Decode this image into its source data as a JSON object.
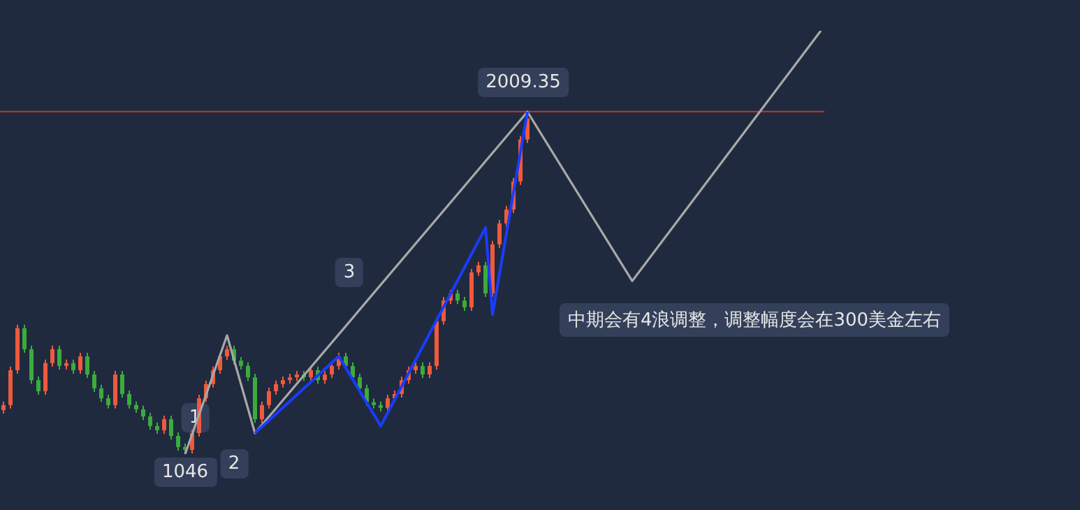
{
  "chart_data": {
    "type": "candlestick",
    "categories": [
      null,
      null,
      null,
      null,
      null,
      null,
      null,
      null,
      null,
      null,
      null,
      null,
      null,
      null,
      null,
      null,
      null,
      null,
      null,
      null,
      null,
      null,
      null,
      null,
      null,
      null,
      null,
      null,
      null,
      null,
      null,
      null,
      null,
      null,
      null,
      null,
      null,
      null,
      null,
      null,
      null,
      null,
      null,
      null,
      null,
      null,
      null,
      null,
      null,
      null,
      null,
      null,
      null,
      null,
      null,
      null,
      null,
      null,
      null,
      null,
      null,
      null,
      null,
      null,
      null,
      null,
      null,
      null,
      null,
      null,
      null,
      null,
      null,
      null,
      null,
      null,
      null,
      null,
      null,
      null,
      null,
      null,
      null,
      null,
      null,
      null,
      null,
      null,
      null,
      null,
      null,
      null,
      null,
      null,
      null,
      null,
      null,
      null,
      null,
      null,
      null,
      null,
      null,
      null,
      null,
      null,
      null,
      null,
      null,
      null,
      null,
      null,
      null,
      null,
      null,
      null,
      null,
      null
    ],
    "ohlc": [
      [
        1170,
        1194,
        1160,
        1184
      ],
      [
        1184,
        1292,
        1174,
        1282
      ],
      [
        1282,
        1410,
        1272,
        1400
      ],
      [
        1400,
        1410,
        1331,
        1341
      ],
      [
        1341,
        1351,
        1244,
        1254
      ],
      [
        1254,
        1264,
        1213,
        1223
      ],
      [
        1223,
        1312,
        1213,
        1302
      ],
      [
        1302,
        1351,
        1292,
        1341
      ],
      [
        1341,
        1351,
        1284,
        1294
      ],
      [
        1294,
        1312,
        1284,
        1302
      ],
      [
        1302,
        1312,
        1272,
        1282
      ],
      [
        1282,
        1331,
        1272,
        1321
      ],
      [
        1321,
        1331,
        1260,
        1270
      ],
      [
        1270,
        1280,
        1221,
        1231
      ],
      [
        1231,
        1241,
        1193,
        1203
      ],
      [
        1203,
        1213,
        1174,
        1184
      ],
      [
        1184,
        1280,
        1174,
        1270
      ],
      [
        1270,
        1280,
        1205,
        1215
      ],
      [
        1215,
        1225,
        1174,
        1184
      ],
      [
        1184,
        1194,
        1162,
        1172
      ],
      [
        1172,
        1182,
        1142,
        1152
      ],
      [
        1152,
        1162,
        1115,
        1125
      ],
      [
        1125,
        1135,
        1103,
        1113
      ],
      [
        1113,
        1154,
        1103,
        1144
      ],
      [
        1144,
        1154,
        1087,
        1097
      ],
      [
        1097,
        1107,
        1056,
        1066
      ],
      [
        1066,
        1076,
        1046,
        1058
      ],
      [
        1058,
        1115,
        1048,
        1105
      ],
      [
        1105,
        1213,
        1095,
        1203
      ],
      [
        1203,
        1253,
        1193,
        1243
      ],
      [
        1243,
        1292,
        1233,
        1282
      ],
      [
        1282,
        1331,
        1272,
        1321
      ],
      [
        1321,
        1351,
        1311,
        1341
      ],
      [
        1341,
        1351,
        1299,
        1309
      ],
      [
        1309,
        1319,
        1284,
        1294
      ],
      [
        1294,
        1304,
        1252,
        1262
      ],
      [
        1262,
        1272,
        1134,
        1144
      ],
      [
        1144,
        1194,
        1134,
        1184
      ],
      [
        1184,
        1233,
        1174,
        1223
      ],
      [
        1223,
        1253,
        1213,
        1243
      ],
      [
        1243,
        1264,
        1233,
        1254
      ],
      [
        1254,
        1272,
        1244,
        1262
      ],
      [
        1262,
        1280,
        1252,
        1270
      ],
      [
        1270,
        1280,
        1252,
        1262
      ],
      [
        1262,
        1292,
        1252,
        1282
      ],
      [
        1282,
        1292,
        1244,
        1254
      ],
      [
        1254,
        1280,
        1244,
        1270
      ],
      [
        1270,
        1304,
        1260,
        1294
      ],
      [
        1294,
        1331,
        1284,
        1321
      ],
      [
        1321,
        1331,
        1284,
        1294
      ],
      [
        1294,
        1304,
        1252,
        1262
      ],
      [
        1262,
        1272,
        1221,
        1231
      ],
      [
        1231,
        1241,
        1182,
        1192
      ],
      [
        1192,
        1202,
        1174,
        1184
      ],
      [
        1184,
        1194,
        1166,
        1176
      ],
      [
        1176,
        1213,
        1166,
        1203
      ],
      [
        1203,
        1225,
        1193,
        1215
      ],
      [
        1215,
        1264,
        1205,
        1254
      ],
      [
        1254,
        1292,
        1244,
        1282
      ],
      [
        1282,
        1304,
        1272,
        1294
      ],
      [
        1294,
        1304,
        1260,
        1270
      ],
      [
        1270,
        1304,
        1260,
        1294
      ],
      [
        1294,
        1430,
        1284,
        1420
      ],
      [
        1420,
        1488,
        1410,
        1478
      ],
      [
        1478,
        1508,
        1468,
        1498
      ],
      [
        1498,
        1508,
        1468,
        1478
      ],
      [
        1478,
        1488,
        1449,
        1459
      ],
      [
        1459,
        1567,
        1449,
        1557
      ],
      [
        1557,
        1587,
        1547,
        1577
      ],
      [
        1577,
        1587,
        1488,
        1498
      ],
      [
        1498,
        1646,
        1488,
        1636
      ],
      [
        1636,
        1705,
        1626,
        1695
      ],
      [
        1695,
        1744,
        1685,
        1734
      ],
      [
        1734,
        1823,
        1724,
        1813
      ],
      [
        1813,
        1941,
        1803,
        1931
      ],
      [
        1931,
        2009.35,
        1921,
        1990
      ],
      null,
      null,
      null,
      null,
      null,
      null,
      null,
      null,
      null,
      null,
      null,
      null,
      null,
      null,
      null,
      null,
      null,
      null,
      null,
      null,
      null,
      null,
      null,
      null,
      null,
      null,
      null,
      null,
      null,
      null,
      null,
      null,
      null,
      null,
      null,
      null,
      null,
      null,
      null,
      null,
      null,
      null
    ],
    "colors": [
      "#ef5a3c",
      "#ef5a3c",
      "#ef5a3c",
      "#3cab3c",
      "#3cab3c",
      "#3cab3c",
      "#ef5a3c",
      "#ef5a3c",
      "#3cab3c",
      "#ef5a3c",
      "#3cab3c",
      "#ef5a3c",
      "#3cab3c",
      "#3cab3c",
      "#3cab3c",
      "#3cab3c",
      "#ef5a3c",
      "#3cab3c",
      "#3cab3c",
      "#3cab3c",
      "#3cab3c",
      "#3cab3c",
      "#3cab3c",
      "#ef5a3c",
      "#3cab3c",
      "#3cab3c",
      "#3cab3c",
      "#ef5a3c",
      "#ef5a3c",
      "#ef5a3c",
      "#ef5a3c",
      "#ef5a3c",
      "#ef5a3c",
      "#3cab3c",
      "#3cab3c",
      "#3cab3c",
      "#3cab3c",
      "#ef5a3c",
      "#ef5a3c",
      "#ef5a3c",
      "#ef5a3c",
      "#ef5a3c",
      "#ef5a3c",
      "#3cab3c",
      "#ef5a3c",
      "#3cab3c",
      "#ef5a3c",
      "#ef5a3c",
      "#ef5a3c",
      "#3cab3c",
      "#3cab3c",
      "#3cab3c",
      "#3cab3c",
      "#3cab3c",
      "#3cab3c",
      "#ef5a3c",
      "#ef5a3c",
      "#ef5a3c",
      "#ef5a3c",
      "#ef5a3c",
      "#3cab3c",
      "#ef5a3c",
      "#ef5a3c",
      "#ef5a3c",
      "#ef5a3c",
      "#3cab3c",
      "#3cab3c",
      "#ef5a3c",
      "#ef5a3c",
      "#3cab3c",
      "#ef5a3c",
      "#ef5a3c",
      "#ef5a3c",
      "#ef5a3c",
      "#ef5a3c",
      "#ef5a3c",
      null,
      null,
      null,
      null,
      null,
      null,
      null,
      null,
      null,
      null,
      null,
      null,
      null,
      null,
      null,
      null,
      null,
      null,
      null,
      null,
      null,
      null,
      null,
      null,
      null,
      null,
      null,
      null,
      null,
      null,
      null,
      null,
      null,
      null,
      null,
      null,
      null,
      null,
      null,
      null,
      null,
      null
    ],
    "series": [
      {
        "type": "line",
        "color": "#a8a8a8",
        "values": [
          null,
          null,
          null,
          null,
          null,
          null,
          null,
          null,
          null,
          null,
          null,
          null,
          null,
          null,
          null,
          null,
          null,
          null,
          null,
          null,
          null,
          null,
          null,
          null,
          null,
          null,
          1046,
          null,
          null,
          null,
          null,
          null,
          1380,
          null,
          null,
          null,
          1105,
          null,
          null,
          null,
          null,
          null,
          null,
          null,
          null,
          null,
          null,
          null,
          null,
          null,
          null,
          null,
          null,
          null,
          null,
          null,
          null,
          null,
          null,
          null,
          null,
          null,
          null,
          null,
          null,
          null,
          null,
          null,
          null,
          null,
          null,
          null,
          null,
          null,
          null,
          2009,
          null,
          null,
          null,
          null,
          null,
          null,
          null,
          null,
          null,
          null,
          null,
          null,
          null,
          null,
          1533,
          null,
          null,
          null,
          null,
          null,
          null,
          null,
          null,
          null,
          null,
          null,
          null,
          null,
          null,
          null,
          null,
          null,
          null,
          null,
          null,
          null,
          null,
          null,
          null,
          null,
          null,
          2237
        ]
      },
      {
        "type": "line",
        "color": "#1a3cff",
        "values": [
          null,
          null,
          null,
          null,
          null,
          null,
          null,
          null,
          null,
          null,
          null,
          null,
          null,
          null,
          null,
          null,
          null,
          null,
          null,
          null,
          null,
          null,
          null,
          null,
          null,
          null,
          null,
          null,
          null,
          null,
          null,
          null,
          null,
          null,
          null,
          null,
          1105,
          null,
          null,
          null,
          null,
          null,
          null,
          null,
          null,
          null,
          null,
          null,
          1321,
          null,
          null,
          null,
          null,
          null,
          1125,
          null,
          null,
          null,
          null,
          null,
          null,
          null,
          null,
          null,
          null,
          null,
          null,
          null,
          null,
          1683,
          1439,
          null,
          null,
          null,
          null,
          2009,
          null,
          null,
          null,
          null,
          null,
          null,
          null,
          null,
          null,
          null,
          null,
          null,
          null,
          null,
          null,
          null,
          null,
          null,
          null,
          null,
          null,
          null,
          null,
          null,
          null,
          null,
          null,
          null,
          null,
          null,
          null,
          null,
          null,
          null,
          null,
          null,
          null,
          null,
          null,
          null,
          null,
          null
        ]
      }
    ],
    "ref_lines": [
      {
        "axis": "y",
        "value": 2009.35,
        "color": "#c0392b"
      }
    ],
    "annotations": [
      {
        "text": "1046",
        "y": 1046
      },
      {
        "text": "2009.35",
        "y": 2009.35
      },
      "1",
      "2",
      "3",
      "中期会有4浪调整，调整幅度会在300美金左右"
    ],
    "grid": false
  }
}
